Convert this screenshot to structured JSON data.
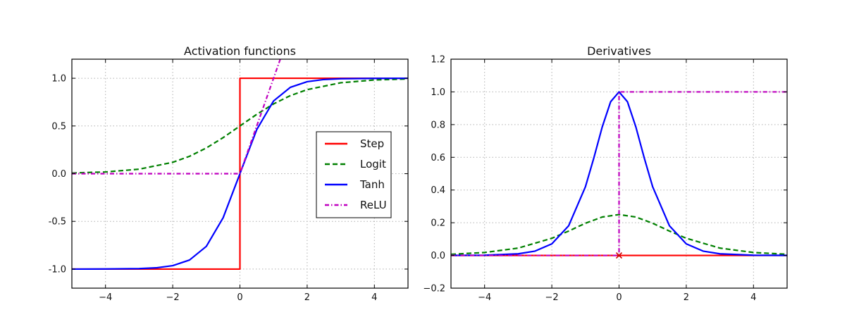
{
  "chart_data": [
    {
      "type": "line",
      "title": "Activation functions",
      "xlabel": "",
      "ylabel": "",
      "xlim": [
        -5,
        5
      ],
      "ylim": [
        -1.2,
        1.2
      ],
      "grid": true,
      "x_ticks": [
        -4,
        -2,
        0,
        2,
        4
      ],
      "x_tick_labels": [
        "−4",
        "−2",
        "0",
        "2",
        "4"
      ],
      "y_ticks": [
        -1.0,
        -0.5,
        0.0,
        0.5,
        1.0
      ],
      "y_tick_labels": [
        "-1.0",
        "-0.5",
        "0.0",
        "0.5",
        "1.0"
      ],
      "legend_position": "center-right",
      "series": [
        {
          "name": "Step",
          "color": "#ff0000",
          "style": "solid",
          "x": [
            -5,
            0,
            0,
            5
          ],
          "y": [
            -1,
            -1,
            1,
            1
          ]
        },
        {
          "name": "Logit",
          "color": "#008000",
          "style": "dashed",
          "x": [
            -5,
            -4,
            -3,
            -2,
            -1.5,
            -1,
            -0.5,
            0,
            0.5,
            1,
            1.5,
            2,
            3,
            4,
            5
          ],
          "y": [
            0.007,
            0.018,
            0.047,
            0.119,
            0.182,
            0.269,
            0.378,
            0.5,
            0.622,
            0.731,
            0.818,
            0.881,
            0.953,
            0.982,
            0.993
          ]
        },
        {
          "name": "Tanh",
          "color": "#0000ff",
          "style": "solid",
          "x": [
            -5,
            -4,
            -3,
            -2.5,
            -2,
            -1.5,
            -1,
            -0.5,
            0,
            0.5,
            1,
            1.5,
            2,
            2.5,
            3,
            4,
            5
          ],
          "y": [
            -1.0,
            -0.999,
            -0.995,
            -0.987,
            -0.964,
            -0.905,
            -0.762,
            -0.462,
            0,
            0.462,
            0.762,
            0.905,
            0.964,
            0.987,
            0.995,
            0.999,
            1.0
          ]
        },
        {
          "name": "ReLU",
          "color": "#bf00bf",
          "style": "dashdot",
          "x": [
            -5,
            0,
            1.2
          ],
          "y": [
            0,
            0,
            1.2
          ]
        }
      ]
    },
    {
      "type": "line",
      "title": "Derivatives",
      "xlabel": "",
      "ylabel": "",
      "xlim": [
        -5,
        5
      ],
      "ylim": [
        -0.2,
        1.2
      ],
      "grid": true,
      "x_ticks": [
        -4,
        -2,
        0,
        2,
        4
      ],
      "x_tick_labels": [
        "−4",
        "−2",
        "0",
        "2",
        "4"
      ],
      "y_ticks": [
        -0.2,
        0.0,
        0.2,
        0.4,
        0.6,
        0.8,
        1.0,
        1.2
      ],
      "y_tick_labels": [
        "−0.2",
        "0.0",
        "0.2",
        "0.4",
        "0.6",
        "0.8",
        "1.0",
        "1.2"
      ],
      "series": [
        {
          "color": "#ff0000",
          "style": "solid",
          "x": [
            -5,
            5
          ],
          "y": [
            0,
            0
          ]
        },
        {
          "color": "#008000",
          "style": "dashed",
          "x": [
            -5,
            -4,
            -3,
            -2,
            -1.5,
            -1,
            -0.5,
            0,
            0.5,
            1,
            1.5,
            2,
            3,
            4,
            5
          ],
          "y": [
            0.007,
            0.018,
            0.045,
            0.105,
            0.149,
            0.197,
            0.235,
            0.25,
            0.235,
            0.197,
            0.149,
            0.105,
            0.045,
            0.018,
            0.007
          ]
        },
        {
          "color": "#0000ff",
          "style": "solid",
          "x": [
            -5,
            -4,
            -3,
            -2.5,
            -2,
            -1.5,
            -1,
            -0.75,
            -0.5,
            -0.25,
            0,
            0.25,
            0.5,
            0.75,
            1,
            1.5,
            2,
            2.5,
            3,
            4,
            5
          ],
          "y": [
            0.0002,
            0.0013,
            0.0099,
            0.0266,
            0.0707,
            0.181,
            0.42,
            0.596,
            0.786,
            0.94,
            1.0,
            0.94,
            0.786,
            0.596,
            0.42,
            0.181,
            0.0707,
            0.0266,
            0.0099,
            0.0013,
            0.0002
          ]
        },
        {
          "color": "#bf00bf",
          "style": "dashdot",
          "x": [
            -5,
            0,
            0,
            5
          ],
          "y": [
            0,
            0,
            1,
            1
          ]
        }
      ],
      "markers": [
        {
          "x": 0,
          "y": 0,
          "symbol": "x",
          "color": "#cc0000"
        }
      ]
    }
  ]
}
